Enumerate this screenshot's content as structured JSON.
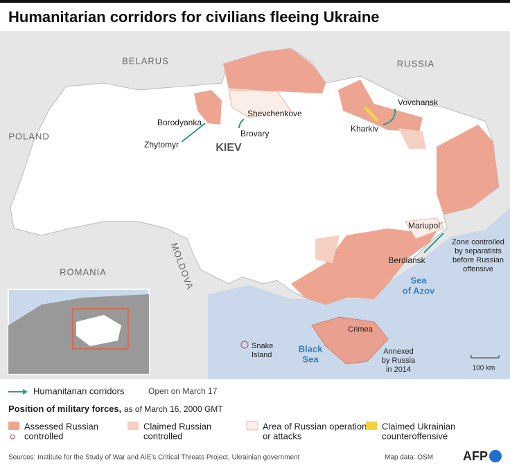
{
  "title": "Humanitarian corridors for civilians fleeing Ukraine",
  "map_labels": [
    {
      "lines": [
        "BELARUS"
      ]
    },
    {
      "lines": [
        "RUSSIA"
      ]
    },
    {
      "lines": [
        "POLAND"
      ]
    },
    {
      "lines": [
        "ROMANIA"
      ]
    },
    {
      "lines": [
        "MOLDOVA"
      ]
    },
    {
      "lines": [
        "Borodyanka"
      ]
    },
    {
      "lines": [
        "Zhytomyr"
      ]
    },
    {
      "lines": [
        "Shevchenkove"
      ]
    },
    {
      "lines": [
        "Brovary"
      ]
    },
    {
      "lines": [
        "KIEV"
      ]
    },
    {
      "lines": [
        "Vovchansk"
      ]
    },
    {
      "lines": [
        "Kharkiv"
      ]
    },
    {
      "lines": [
        "Mariupol"
      ]
    },
    {
      "lines": [
        "Berdiansk"
      ]
    },
    {
      "lines": [
        "Sea",
        "of Azov"
      ]
    },
    {
      "lines": [
        "Black",
        "Sea"
      ]
    },
    {
      "lines": [
        "Snake",
        "Island"
      ]
    },
    {
      "lines": [
        "Crimea"
      ]
    },
    {
      "lines": [
        "Zone controlled",
        "by separatists",
        "before Russian",
        "offensive"
      ]
    },
    {
      "lines": [
        "Annexed",
        "by Russia",
        "in 2014"
      ]
    },
    {
      "lines": [
        "100 km"
      ]
    }
  ],
  "legend": {
    "corridor": "Humanitarian corridors",
    "corridor_note": "Open on March 17",
    "heading": "Position of military forces,",
    "heading_note": "as of March 16, 2000 GMT",
    "items": [
      {
        "lines": [
          "Assessed Russian",
          "controlled"
        ]
      },
      {
        "lines": [
          "Claimed Russian",
          "controlled"
        ]
      },
      {
        "lines": [
          "Area of Russian operations",
          "or attacks"
        ]
      },
      {
        "lines": [
          "Claimed Ukrainian",
          "counteroffensive"
        ]
      }
    ]
  },
  "footer": {
    "sources": "Sources: Institute for the Study of War and AIE's Critical Threats Project, Ukrainian government",
    "map_data": "Map data: OSM",
    "logo": "AFP"
  }
}
